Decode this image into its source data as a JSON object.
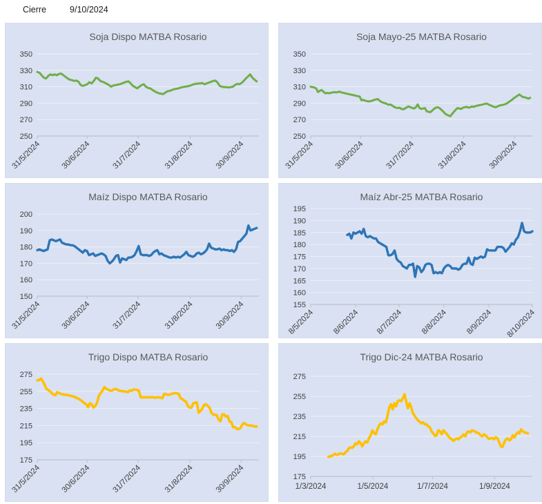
{
  "header": {
    "label": "Cierre",
    "date": "9/10/2024"
  },
  "colors": {
    "panel_bg": "#d9e1f2",
    "grid_line": "#edf1f8",
    "axis_line": "#bcc3d0",
    "title_text": "#595959",
    "axis_text": "#404040",
    "green": "#70ad47",
    "blue": "#2e75b6",
    "yellow": "#ffc000"
  },
  "chart_data": [
    {
      "type": "line",
      "title": "Soja Dispo MATBA Rosario",
      "series_color": "green",
      "ylim": [
        250,
        350
      ],
      "yticks": [
        "350",
        "330",
        "310",
        "290",
        "270",
        "250"
      ],
      "x_rotated": true,
      "xticks": [
        {
          "label": "31/5/2024",
          "pos": 0.0
        },
        {
          "label": "30/6/2024",
          "pos": 0.225
        },
        {
          "label": "31/7/2024",
          "pos": 0.455
        },
        {
          "label": "31/8/2024",
          "pos": 0.69
        },
        {
          "label": "30/9/2024",
          "pos": 0.92
        }
      ],
      "data_start": 0.0,
      "data_end": 0.99,
      "values": [
        328,
        327,
        324,
        321,
        320,
        323,
        325,
        324,
        325,
        324,
        325.5,
        326,
        324,
        322,
        320,
        318.5,
        318,
        317,
        317.5,
        316,
        312,
        311,
        312,
        313,
        315.5,
        314,
        317,
        321,
        320,
        317,
        316,
        315,
        313.5,
        312,
        310,
        311.5,
        312,
        312.5,
        313,
        314,
        315,
        316,
        316.5,
        314,
        311,
        309.5,
        308,
        310,
        312,
        313,
        310,
        308.5,
        308,
        306,
        304.5,
        303,
        302,
        301.5,
        301,
        303,
        304.5,
        305,
        306,
        307,
        307.5,
        308,
        309,
        309.5,
        310,
        310.5,
        311,
        312,
        313,
        313.5,
        314,
        314,
        314.5,
        313,
        314,
        315,
        316,
        317,
        317.5,
        315,
        311,
        310,
        309.5,
        309.5,
        309,
        309.5,
        310,
        312,
        313.5,
        313,
        314.5,
        317,
        320,
        322.5,
        325,
        321,
        318.5,
        316.5
      ]
    },
    {
      "type": "line",
      "title": "Soja Mayo-25  MATBA  Rosario",
      "series_color": "green",
      "ylim": [
        250,
        350
      ],
      "yticks": [
        "350",
        "330",
        "310",
        "290",
        "270",
        "250"
      ],
      "x_rotated": true,
      "xticks": [
        {
          "label": "31/5/2024",
          "pos": 0.0
        },
        {
          "label": "30/6/2024",
          "pos": 0.225
        },
        {
          "label": "31/7/2024",
          "pos": 0.455
        },
        {
          "label": "31/8/2024",
          "pos": 0.69
        },
        {
          "label": "30/9/2024",
          "pos": 0.92
        }
      ],
      "data_start": 0.0,
      "data_end": 0.99,
      "values": [
        310,
        309.5,
        309,
        308,
        303.5,
        305,
        306,
        304,
        302,
        302.5,
        302,
        302.5,
        303,
        303.5,
        303,
        303.5,
        304,
        303,
        302.5,
        302,
        301.5,
        301,
        300.5,
        300,
        299.5,
        299,
        298.5,
        298,
        293.5,
        294,
        293,
        292.5,
        292,
        292.5,
        293,
        294,
        294.5,
        295,
        293,
        291.5,
        290.5,
        290,
        289,
        288,
        288.5,
        287,
        285.5,
        284.5,
        284,
        284.5,
        283,
        282.5,
        283.5,
        285,
        286,
        285,
        284,
        283.5,
        285,
        288.5,
        284,
        283,
        283.5,
        284,
        280,
        279.5,
        279,
        281,
        283,
        284.5,
        285,
        284,
        282,
        280,
        277.5,
        276,
        275,
        274,
        277,
        279.5,
        282,
        284,
        283.5,
        283,
        284.5,
        285,
        285.5,
        284.5,
        285,
        286,
        285.5,
        286.5,
        287,
        287.5,
        288,
        288.5,
        289,
        289.5,
        288.5,
        287.5,
        286.5,
        285.5,
        285,
        286,
        287,
        287.5,
        288,
        288.5,
        289.5,
        291,
        292.5,
        294,
        296,
        297.5,
        299,
        300.5,
        299,
        297.5,
        297,
        296.5,
        295.5,
        296.5
      ]
    },
    {
      "type": "line",
      "title": "Maíz Dispo MATBA Rosario",
      "series_color": "blue",
      "ylim": [
        150,
        200
      ],
      "yticks": [
        "200",
        "190",
        "180",
        "170",
        "160",
        "150"
      ],
      "x_rotated": true,
      "xticks": [
        {
          "label": "31/5/2024",
          "pos": 0.0
        },
        {
          "label": "30/6/2024",
          "pos": 0.225
        },
        {
          "label": "31/7/2024",
          "pos": 0.455
        },
        {
          "label": "31/8/2024",
          "pos": 0.69
        },
        {
          "label": "30/9/2024",
          "pos": 0.92
        }
      ],
      "data_start": 0.0,
      "data_end": 0.99,
      "values": [
        178,
        178.5,
        178,
        177.5,
        178,
        178.5,
        184,
        184.5,
        184,
        183.5,
        184,
        184.5,
        182.5,
        182,
        181.5,
        181.5,
        181,
        181,
        180.5,
        179.5,
        178.5,
        177.5,
        176.5,
        178,
        177.5,
        175,
        175.5,
        176,
        174.5,
        175,
        175.5,
        176,
        175.5,
        174.5,
        171.5,
        170,
        171,
        172.5,
        174.5,
        175,
        170.5,
        173,
        172.5,
        172,
        173.5,
        173.5,
        174,
        175,
        177.5,
        180.5,
        175.5,
        175,
        175,
        175,
        174.5,
        175,
        176.5,
        177.5,
        178,
        175.5,
        176,
        175,
        174.5,
        174,
        173.5,
        173.5,
        174,
        173.5,
        174,
        173.5,
        174.5,
        175.5,
        177,
        175,
        174.5,
        174,
        174.5,
        176,
        176.5,
        175.5,
        176,
        177,
        178.5,
        182,
        179.5,
        179,
        178.5,
        178.5,
        179,
        178,
        178.5,
        178,
        178,
        177.5,
        178,
        177,
        178.5,
        183,
        183.5,
        185,
        186.5,
        188,
        193,
        190,
        190.5,
        191,
        191.5
      ]
    },
    {
      "type": "line",
      "title": "Maíz Abr-25  MATBA  Rosario",
      "series_color": "blue",
      "ylim": [
        155,
        195
      ],
      "yticks": [
        "195",
        "190",
        "185",
        "180",
        "175",
        "170",
        "165",
        "160",
        "155"
      ],
      "x_rotated": true,
      "xticks": [
        {
          "label": "8/5/2024",
          "pos": 0.0
        },
        {
          "label": "8/6/2024",
          "pos": 0.203
        },
        {
          "label": "8/7/2024",
          "pos": 0.399
        },
        {
          "label": "8/8/2024",
          "pos": 0.601
        },
        {
          "label": "8/9/2024",
          "pos": 0.804
        },
        {
          "label": "8/10/2024",
          "pos": 1.0
        }
      ],
      "data_start": 0.165,
      "data_end": 1.0,
      "values": [
        184,
        184.5,
        182.5,
        185,
        184.5,
        185,
        185.5,
        184.5,
        186.5,
        183.5,
        183,
        183.5,
        183,
        182.5,
        182.5,
        181,
        180.5,
        180,
        179.5,
        179,
        175.5,
        175.5,
        176,
        177.5,
        174,
        173,
        172.5,
        171,
        170.5,
        170,
        171.5,
        171.5,
        172,
        166.5,
        171,
        170.5,
        168.5,
        169.5,
        171.5,
        172,
        172,
        171.5,
        168,
        168.5,
        168,
        168.5,
        168,
        170,
        171,
        171.5,
        171,
        170,
        170,
        170,
        169.5,
        170,
        171.5,
        172,
        172,
        174.5,
        172,
        171.5,
        174.5,
        174,
        174.5,
        175,
        174.5,
        175,
        178,
        177.5,
        177.5,
        177.5,
        177.5,
        179,
        179,
        179,
        178.5,
        177,
        178,
        179,
        180.5,
        180,
        182,
        183,
        185.5,
        189,
        185.5,
        185,
        185,
        185,
        185.5
      ]
    },
    {
      "type": "line",
      "title": "Trigo Dispo MATBA  Rosario",
      "series_color": "yellow",
      "ylim": [
        175,
        275
      ],
      "yticks": [
        "275",
        "255",
        "235",
        "215",
        "195",
        "175"
      ],
      "x_rotated": true,
      "xticks": [
        {
          "label": "31/5/2024",
          "pos": 0.0
        },
        {
          "label": "30/6/2024",
          "pos": 0.225
        },
        {
          "label": "31/7/2024",
          "pos": 0.455
        },
        {
          "label": "31/8/2024",
          "pos": 0.69
        },
        {
          "label": "30/9/2024",
          "pos": 0.92
        }
      ],
      "data_start": 0.0,
      "data_end": 0.99,
      "values": [
        268,
        268,
        270,
        267,
        263,
        258,
        256.5,
        255,
        253,
        251,
        250.5,
        254,
        253,
        252,
        251.5,
        251,
        251,
        250.5,
        250,
        249.5,
        249,
        248,
        247,
        246,
        244.5,
        243,
        241,
        240,
        236.5,
        241,
        240,
        236,
        238,
        242,
        250,
        253,
        256,
        260,
        258,
        257,
        256,
        255.5,
        257,
        258,
        257,
        256,
        255.5,
        255,
        255,
        254.5,
        254,
        256,
        255.5,
        257,
        257,
        256.5,
        256,
        248,
        248,
        248,
        248,
        248,
        248,
        248,
        248,
        247.5,
        248,
        248,
        247.5,
        247,
        252,
        251.5,
        251,
        251,
        252,
        252.5,
        253,
        252.5,
        252,
        247,
        246,
        244,
        243,
        238,
        236,
        236,
        241,
        241.5,
        242,
        230,
        232,
        235,
        239,
        240,
        238,
        236,
        230,
        228,
        227.5,
        227,
        222,
        220,
        228,
        228,
        225.5,
        226,
        220,
        219,
        213,
        213.5,
        211,
        211,
        212,
        216,
        218,
        216.5,
        215.5,
        215,
        215,
        214.5,
        214,
        214
      ]
    },
    {
      "type": "line",
      "title": "Trigo Dic-24 MATBA  Rosario",
      "series_color": "yellow",
      "ylim": [
        175,
        275
      ],
      "yticks": [
        "275",
        "255",
        "235",
        "215",
        "195",
        "175"
      ],
      "x_rotated": false,
      "xticks": [
        {
          "label": "1/3/2024",
          "pos": 0.0
        },
        {
          "label": "1/5/2024",
          "pos": 0.28
        },
        {
          "label": "1/7/2024",
          "pos": 0.55
        },
        {
          "label": "1/9/2024",
          "pos": 0.83
        }
      ],
      "data_start": 0.08,
      "data_end": 0.98,
      "values": [
        194.5,
        195,
        195.5,
        196.5,
        197.5,
        196.5,
        197,
        198,
        197.5,
        197,
        199,
        200,
        203,
        204,
        203.5,
        205,
        208,
        207,
        210,
        208.5,
        205,
        208,
        210,
        209,
        213,
        216,
        221,
        218.5,
        217,
        222,
        226,
        228,
        227,
        230,
        229,
        236,
        244,
        247,
        242,
        248,
        245,
        250,
        251,
        250,
        253,
        257,
        250,
        243,
        248,
        244,
        238,
        235.5,
        233,
        231,
        229.5,
        228,
        229,
        227,
        227,
        225,
        224,
        220,
        218,
        215.5,
        216,
        221,
        220,
        217,
        221,
        219,
        217.5,
        215,
        213,
        212,
        210.5,
        212,
        213,
        212,
        214,
        215,
        217,
        215,
        219,
        220,
        219,
        221,
        220.5,
        219.5,
        218.5,
        218,
        216,
        215,
        217,
        216,
        214,
        212.5,
        213,
        213.5,
        212,
        214,
        213,
        209,
        205,
        204.5,
        209,
        212,
        213,
        211,
        212,
        216,
        214,
        217,
        219,
        218,
        222,
        220,
        219,
        218.5,
        218
      ]
    }
  ]
}
